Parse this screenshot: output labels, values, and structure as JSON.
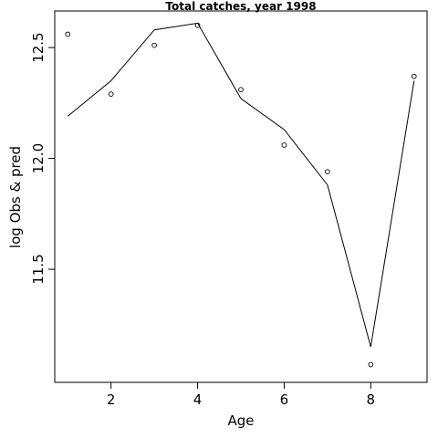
{
  "chart_data": {
    "type": "line",
    "title": "Total catches, year 1998",
    "xlabel": "Age",
    "ylabel": "log Obs & pred",
    "xlim": [
      0.7,
      9.3
    ],
    "ylim": [
      10.99,
      12.665
    ],
    "x_ticks": [
      2,
      4,
      6,
      8
    ],
    "y_ticks": [
      11.5,
      12.0,
      12.5
    ],
    "x_tick_labels": [
      "2",
      "4",
      "6",
      "8"
    ],
    "y_tick_labels": [
      "11.5",
      "12.0",
      "12.5"
    ],
    "grid": false,
    "legend": "none",
    "series": [
      {
        "kind": "line",
        "x": [
          1,
          2,
          3,
          4,
          5,
          6,
          7,
          8,
          9
        ],
        "values": [
          12.19,
          12.35,
          12.58,
          12.61,
          12.27,
          12.13,
          11.88,
          11.15,
          12.35
        ]
      },
      {
        "kind": "points",
        "x": [
          1,
          2,
          3,
          4,
          5,
          6,
          7,
          8,
          9
        ],
        "values": [
          12.56,
          12.29,
          12.51,
          12.6,
          12.31,
          12.06,
          11.94,
          11.07,
          12.37
        ]
      }
    ]
  }
}
